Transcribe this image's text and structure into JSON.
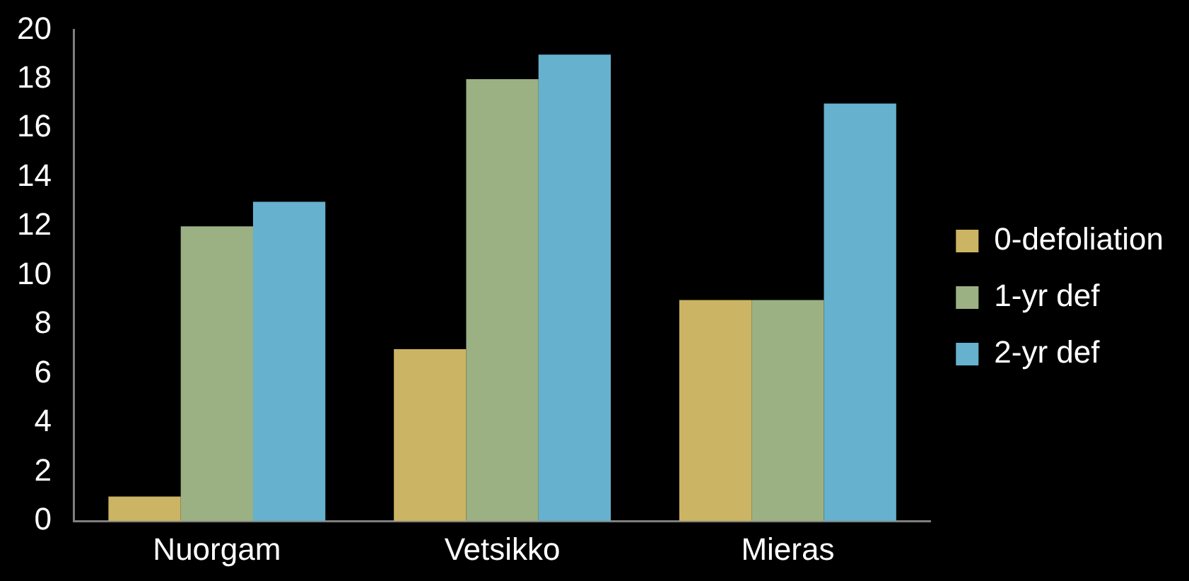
{
  "chart_data": {
    "type": "bar",
    "categories": [
      "Nuorgam",
      "Vetsikko",
      "Mieras"
    ],
    "series": [
      {
        "name": "0-defoliation",
        "color": "#cbb463",
        "values": [
          1,
          7,
          9
        ]
      },
      {
        "name": "1-yr def",
        "color": "#9cb183",
        "values": [
          12,
          18,
          9
        ]
      },
      {
        "name": "2-yr def",
        "color": "#66b1ce",
        "values": [
          13,
          19,
          17
        ]
      }
    ],
    "ylim": [
      0,
      20
    ],
    "yticks": [
      0,
      2,
      4,
      6,
      8,
      10,
      12,
      14,
      16,
      18,
      20
    ],
    "grid": false,
    "legend": "right"
  }
}
